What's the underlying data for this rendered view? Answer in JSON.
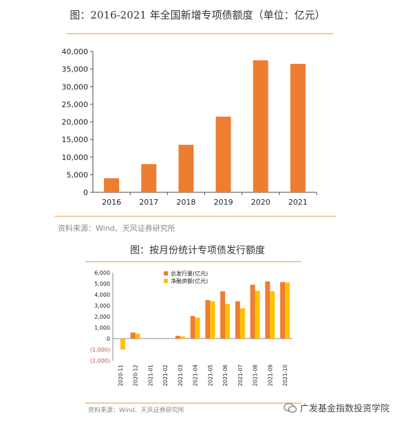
{
  "page": {
    "title1": "图：2016-2021 年全国新增专项债额度（单位：亿元）",
    "source1": "资料来源：Wind、天风证券研究所",
    "title2": "图：按月份统计专项债发行额度",
    "source2": "资料来源：Wind、天风证券研究所",
    "watermark": "广发基金指数投资学院",
    "colors": {
      "bar": "#ED7D31",
      "bar2": "#FFC000",
      "rule": "#F0C9A0",
      "neg_tick": "#C0504D"
    }
  },
  "chart_data": [
    {
      "type": "bar",
      "categories": [
        "2016",
        "2017",
        "2018",
        "2019",
        "2020",
        "2021"
      ],
      "values": [
        4000,
        8000,
        13500,
        21500,
        37500,
        36500
      ],
      "yticks": [
        "0",
        "5,000",
        "10,000",
        "15,000",
        "20,000",
        "25,000",
        "30,000",
        "35,000",
        "40,000"
      ],
      "ylim": [
        0,
        40000
      ],
      "grid": false
    },
    {
      "type": "bar",
      "categories": [
        "2020-11",
        "2020-12",
        "2021-01",
        "2021-02",
        "2021-03",
        "2021-04",
        "2021-05",
        "2021-06",
        "2021-07",
        "2021-08",
        "2021-09",
        "2021-10"
      ],
      "series": [
        {
          "name": "总发行量(亿元)",
          "values": [
            0,
            550,
            0,
            0,
            250,
            2050,
            3500,
            4300,
            3400,
            4900,
            5200,
            5150
          ]
        },
        {
          "name": "净融资额(亿元)",
          "values": [
            -1000,
            450,
            0,
            0,
            200,
            1900,
            3400,
            3150,
            2750,
            4350,
            4300,
            5100
          ]
        }
      ],
      "yticks": [
        "(2,000)",
        "(1,000)",
        "0",
        "1,000",
        "2,000",
        "3,000",
        "4,000",
        "5,000",
        "6,000"
      ],
      "ylim": [
        -2000,
        6000
      ],
      "legend": "top-center",
      "grid": false
    }
  ]
}
